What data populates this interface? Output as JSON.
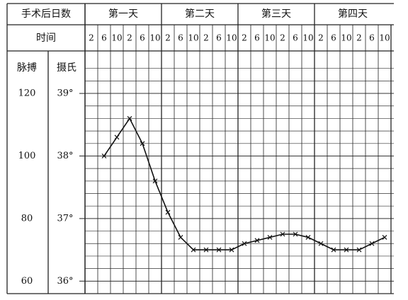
{
  "chart_data": {
    "type": "line",
    "header_label": "手术后日数",
    "x_label": "时间",
    "y_label": "摄氏",
    "y2_label": "脉搏",
    "groups": [
      "第一天",
      "第二天",
      "第三天",
      "第四天"
    ],
    "categories": [
      "2",
      "6",
      "10",
      "2",
      "6",
      "10",
      "2",
      "6",
      "10",
      "2",
      "6",
      "10",
      "2",
      "6",
      "10",
      "2",
      "6",
      "10",
      "2",
      "6",
      "10",
      "2",
      "6",
      "10"
    ],
    "values": [
      null,
      38.0,
      38.3,
      38.6,
      38.2,
      37.6,
      37.1,
      36.7,
      36.5,
      36.5,
      36.5,
      36.5,
      36.6,
      36.65,
      36.7,
      36.75,
      36.75,
      36.7,
      36.6,
      36.5,
      36.5,
      36.5,
      36.6,
      36.7
    ],
    "color": "#111111",
    "ylim": [
      35.8,
      39.6
    ],
    "yticks": [
      {
        "value": 36,
        "label": "36°"
      },
      {
        "value": 37,
        "label": "37°"
      },
      {
        "value": 38,
        "label": "38°"
      },
      {
        "value": 39,
        "label": "39°"
      }
    ],
    "y2lim": [
      56,
      132
    ],
    "y2ticks": [
      60,
      80,
      100,
      120
    ],
    "grid": true
  }
}
